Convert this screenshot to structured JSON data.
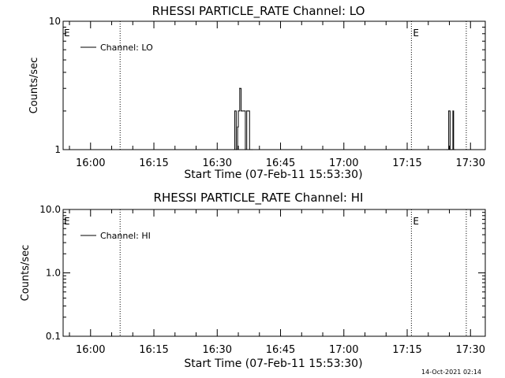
{
  "chart_data": [
    {
      "type": "line",
      "title": "RHESSI PARTICLE_RATE Channel: LO",
      "xlabel": "Start Time (07-Feb-11 15:53:30)",
      "ylabel": "Counts/sec",
      "y_scale": "log",
      "ylim": [
        1,
        10
      ],
      "y_ticks": [
        {
          "value": 1,
          "label": "1"
        },
        {
          "value": 10,
          "label": "10"
        }
      ],
      "xlim": [
        "15:53:30",
        "17:33:30"
      ],
      "x_ticks": [
        "16:00",
        "16:15",
        "16:30",
        "16:45",
        "17:00",
        "17:15",
        "17:30"
      ],
      "grid": false,
      "legend": {
        "position": "top-left"
      },
      "event_markers": [
        {
          "time": "16:07:00",
          "label": ""
        },
        {
          "time": "17:16:00",
          "label": "E"
        },
        {
          "time": "17:29:00",
          "label": ""
        }
      ],
      "corner_marker": "E",
      "series": [
        {
          "name": "Channel: LO",
          "x": [
            "16:34:00",
            "16:34:10",
            "16:34:30",
            "16:34:50",
            "16:35:00",
            "16:35:20",
            "16:35:40",
            "16:36:00",
            "16:36:20",
            "16:36:40",
            "16:37:00",
            "16:37:20",
            "16:37:40",
            "16:38:00",
            "16:38:20",
            "17:24:30",
            "17:24:50",
            "17:25:10",
            "17:25:30",
            "17:25:50",
            "17:26:00",
            "17:26:20"
          ],
          "y": [
            1,
            2,
            1,
            1.5,
            2,
            3,
            2,
            2,
            2,
            1,
            2,
            2,
            1,
            1,
            1,
            1,
            2,
            1,
            1,
            2,
            1,
            1
          ]
        }
      ]
    },
    {
      "type": "line",
      "title": "RHESSI PARTICLE_RATE Channel: HI",
      "xlabel": "Start Time (07-Feb-11 15:53:30)",
      "ylabel": "Counts/sec",
      "y_scale": "log",
      "ylim": [
        0.1,
        10
      ],
      "y_ticks": [
        {
          "value": 0.1,
          "label": "0.1"
        },
        {
          "value": 1,
          "label": "1.0"
        },
        {
          "value": 10,
          "label": "10.0"
        }
      ],
      "xlim": [
        "15:53:30",
        "17:33:30"
      ],
      "x_ticks": [
        "16:00",
        "16:15",
        "16:30",
        "16:45",
        "17:00",
        "17:15",
        "17:30"
      ],
      "grid": false,
      "legend": {
        "position": "top-left"
      },
      "event_markers": [
        {
          "time": "16:07:00",
          "label": ""
        },
        {
          "time": "17:16:00",
          "label": "E"
        },
        {
          "time": "17:29:00",
          "label": ""
        }
      ],
      "corner_marker": "E",
      "series": [
        {
          "name": "Channel: HI",
          "x": [],
          "y": []
        }
      ]
    }
  ],
  "footer": {
    "timestamp": "14-Oct-2021 02:14"
  }
}
